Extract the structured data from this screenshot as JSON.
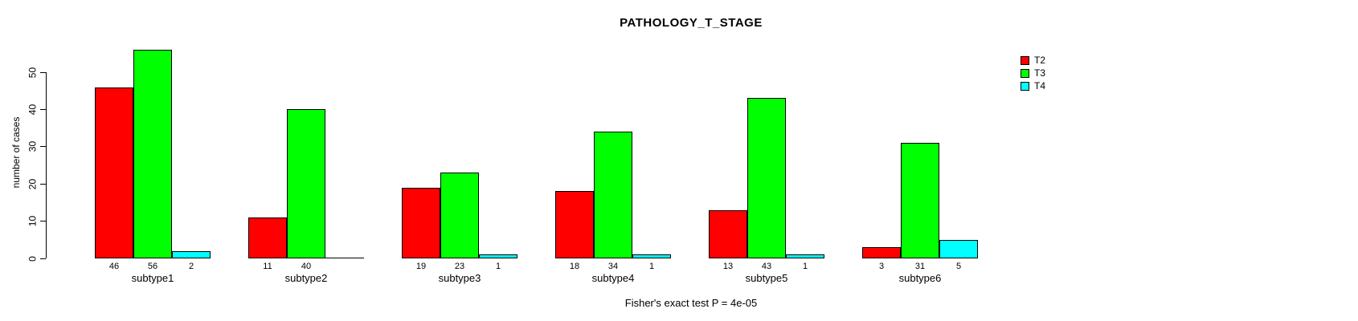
{
  "chart_data": {
    "type": "bar",
    "title": "PATHOLOGY_T_STAGE",
    "ylabel": "number of cases",
    "xlabel": "",
    "caption": "Fisher's exact test P = 4e-05",
    "categories": [
      "subtype1",
      "subtype2",
      "subtype3",
      "subtype4",
      "subtype5",
      "subtype6"
    ],
    "series": [
      {
        "name": "T2",
        "color": "#ff0000",
        "values": [
          46,
          11,
          19,
          18,
          13,
          3
        ]
      },
      {
        "name": "T3",
        "color": "#00ff00",
        "values": [
          56,
          40,
          23,
          34,
          43,
          31
        ]
      },
      {
        "name": "T4",
        "color": "#00ffff",
        "values": [
          2,
          0,
          1,
          1,
          1,
          5
        ]
      }
    ],
    "bar_value_labels": [
      [
        "46",
        "56",
        "2"
      ],
      [
        "11",
        "40",
        ""
      ],
      [
        "19",
        "23",
        "1"
      ],
      [
        "18",
        "34",
        "1"
      ],
      [
        "13",
        "43",
        "1"
      ],
      [
        "3",
        "31",
        "5"
      ]
    ],
    "y_ticks": [
      0,
      10,
      20,
      30,
      40,
      50
    ],
    "ylim": [
      0,
      58
    ],
    "grid": false,
    "legend_position": "top-right",
    "colors": {
      "axis": "#000000",
      "text": "#000000",
      "background": "#ffffff"
    }
  }
}
